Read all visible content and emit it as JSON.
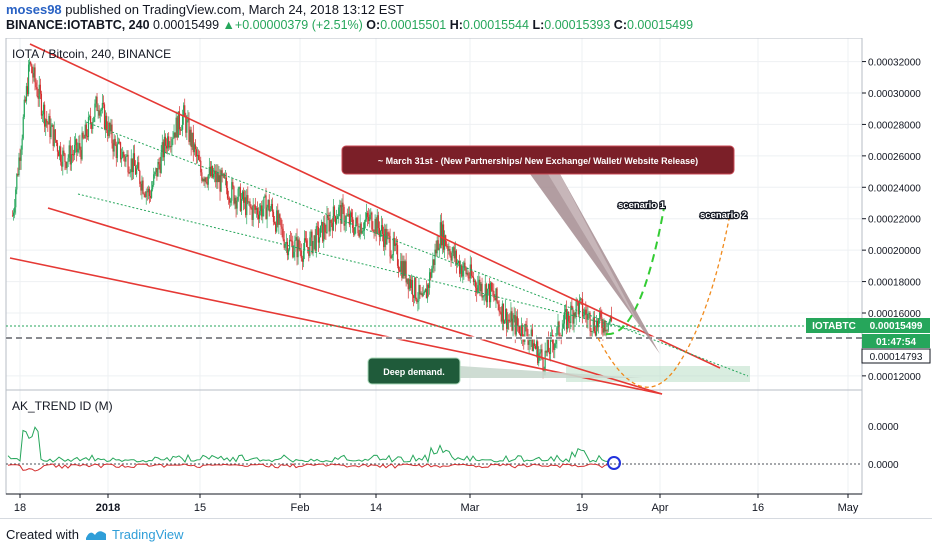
{
  "header": {
    "author": "moses98",
    "published": "published on TradingView.com, March 24, 2018 13:12 EST",
    "symbol_line": "BINANCE:IOTABTC, 240",
    "last": "0.00015499",
    "change_arrow": "▲",
    "change": "+0.00000379 (+2.51%)",
    "o_label": "O:",
    "o": "0.00015501",
    "h_label": "H:",
    "h": "0.00015544",
    "l_label": "L:",
    "l": "0.00015393",
    "c_label": "C:",
    "c": "0.00015499"
  },
  "chart": {
    "pair_title": "IOTA / Bitcoin, 240, BINANCE",
    "indicator_title": "AK_TREND ID (M)",
    "price_tag_symbol": "IOTABTC",
    "price_tag_value": "0.00015499",
    "countdown": "01:47:54",
    "line_value": "0.00014793",
    "callout_main": "~ March 31st - (New Partnerships/ New Exchange/ Wallet/ Website Release)",
    "callout_demand": "Deep demand.",
    "scenario1": "scenario 1",
    "scenario2": "scenario 2",
    "colors": {
      "up": "#26a65b",
      "down": "#d32f2f",
      "channel": "#e53935",
      "callout_bg": "#7b1f28",
      "demand_bg": "#1f5b3a",
      "tag": "#26a65b"
    }
  },
  "chart_data": {
    "type": "candlestick",
    "title": "IOTA / Bitcoin, 240, BINANCE",
    "y_ticks": [
      "0.00032000",
      "0.00030000",
      "0.00028000",
      "0.00026000",
      "0.00024000",
      "0.00022000",
      "0.00020000",
      "0.00018000",
      "0.00016000",
      "0.00012000"
    ],
    "y_range": [
      0.000111,
      0.000335
    ],
    "x_ticks": [
      "18",
      "2018",
      "15",
      "Feb",
      "14",
      "Mar",
      "19",
      "Apr",
      "16",
      "May"
    ],
    "price_series": [
      {
        "t": "Dec 18",
        "v": 0.000222
      },
      {
        "t": "Dec 20",
        "v": 0.000318
      },
      {
        "t": "Dec 23",
        "v": 0.000282
      },
      {
        "t": "Dec 26",
        "v": 0.000258
      },
      {
        "t": "Dec 29",
        "v": 0.000265
      },
      {
        "t": "Jan 1",
        "v": 0.000295
      },
      {
        "t": "Jan 4",
        "v": 0.000265
      },
      {
        "t": "Jan 7",
        "v": 0.000255
      },
      {
        "t": "Jan 10",
        "v": 0.000235
      },
      {
        "t": "Jan 13",
        "v": 0.00027
      },
      {
        "t": "Jan 15",
        "v": 0.000285
      },
      {
        "t": "Jan 18",
        "v": 0.00025
      },
      {
        "t": "Jan 21",
        "v": 0.000245
      },
      {
        "t": "Jan 24",
        "v": 0.000235
      },
      {
        "t": "Jan 27",
        "v": 0.000225
      },
      {
        "t": "Jan 30",
        "v": 0.000228
      },
      {
        "t": "Feb 2",
        "v": 0.000205
      },
      {
        "t": "Feb 5",
        "v": 0.0002
      },
      {
        "t": "Feb 8",
        "v": 0.00021
      },
      {
        "t": "Feb 11",
        "v": 0.000225
      },
      {
        "t": "Feb 14",
        "v": 0.000215
      },
      {
        "t": "Feb 17",
        "v": 0.00022
      },
      {
        "t": "Feb 20",
        "v": 0.000205
      },
      {
        "t": "Feb 23",
        "v": 0.000185
      },
      {
        "t": "Feb 26",
        "v": 0.000165
      },
      {
        "t": "Feb 28",
        "v": 0.000212
      },
      {
        "t": "Mar 2",
        "v": 0.000192
      },
      {
        "t": "Mar 5",
        "v": 0.00018
      },
      {
        "t": "Mar 8",
        "v": 0.000172
      },
      {
        "t": "Mar 11",
        "v": 0.000155
      },
      {
        "t": "Mar 14",
        "v": 0.000148
      },
      {
        "t": "Mar 17",
        "v": 0.00013
      },
      {
        "t": "Mar 19",
        "v": 0.00015
      },
      {
        "t": "Mar 21",
        "v": 0.000165
      },
      {
        "t": "Mar 23",
        "v": 0.000153
      },
      {
        "t": "Mar 24",
        "v": 0.000155
      }
    ],
    "last_price": 0.00015499,
    "dashed_level": 0.00014793,
    "indicator": {
      "name": "AK_TREND ID (M)",
      "y_ticks": [
        "0.0000",
        "0.0000"
      ]
    }
  }
}
